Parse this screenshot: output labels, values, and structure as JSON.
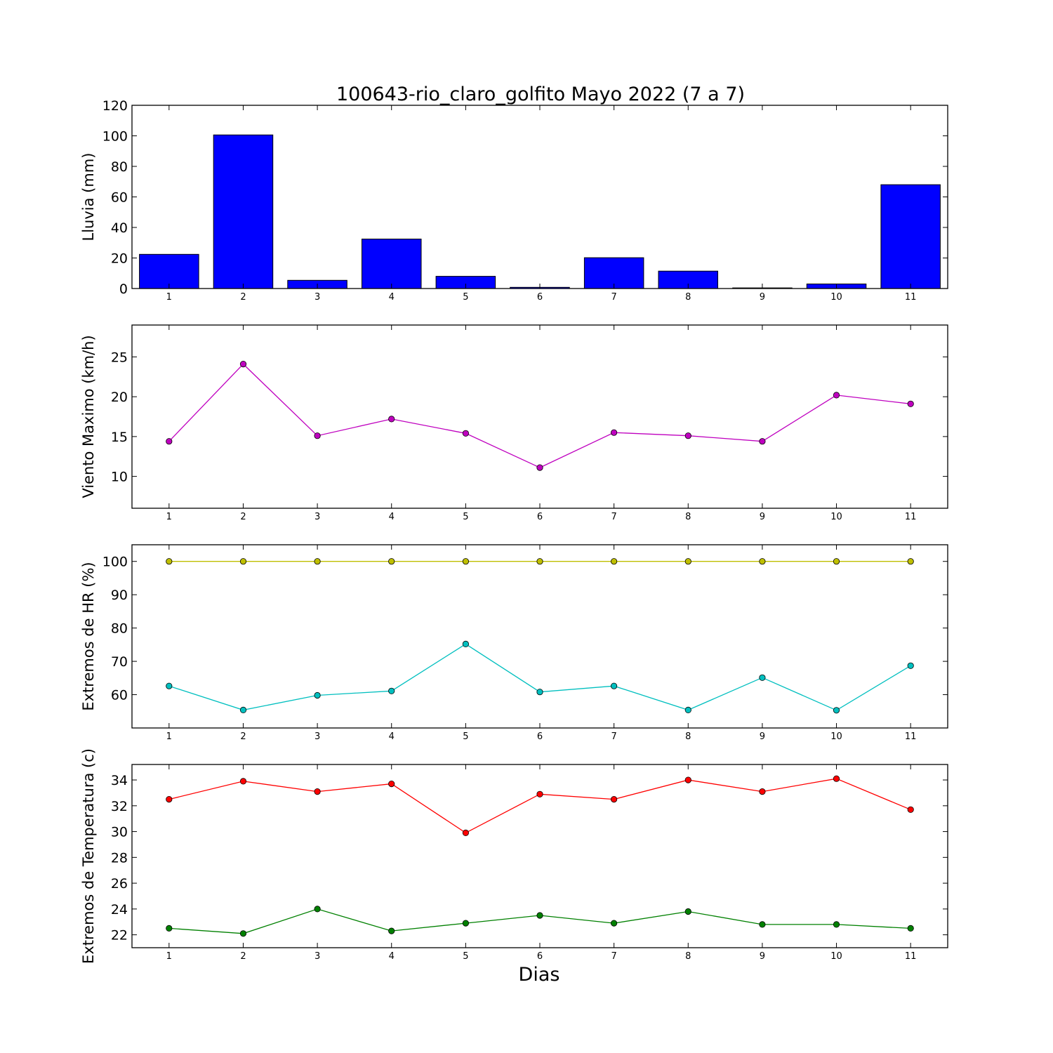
{
  "figure": {
    "title": "100643-rio_claro_golfito Mayo 2022  (7 a 7)",
    "xlabel": "Dias"
  },
  "chart_data": [
    {
      "type": "bar",
      "ylabel": "Lluvia (mm)",
      "ylim": [
        0,
        120
      ],
      "yticks": [
        0,
        20,
        40,
        60,
        80,
        100,
        120
      ],
      "categories": [
        "1",
        "2",
        "3",
        "4",
        "5",
        "6",
        "7",
        "8",
        "9",
        "10",
        "11"
      ],
      "series": [
        {
          "values": [
            22.4,
            100.6,
            5.4,
            32.4,
            8.0,
            0.8,
            20.2,
            11.4,
            0.4,
            3.0,
            68.0
          ],
          "color": "#0000ff"
        }
      ],
      "grid": false
    },
    {
      "type": "line",
      "ylabel": "Viento Maximo (km/h)",
      "ylim": [
        6,
        29
      ],
      "yticks": [
        10,
        15,
        20,
        25
      ],
      "categories": [
        "1",
        "2",
        "3",
        "4",
        "5",
        "6",
        "7",
        "8",
        "9",
        "10",
        "11"
      ],
      "series": [
        {
          "values": [
            14.4,
            24.1,
            15.1,
            17.2,
            15.4,
            11.1,
            15.5,
            15.1,
            14.4,
            20.2,
            19.1
          ],
          "color": "#bf00bf"
        }
      ],
      "grid": false
    },
    {
      "type": "line",
      "ylabel": "Extremos de HR (%)",
      "ylim": [
        50,
        105
      ],
      "yticks": [
        60,
        70,
        80,
        90,
        100
      ],
      "categories": [
        "1",
        "2",
        "3",
        "4",
        "5",
        "6",
        "7",
        "8",
        "9",
        "10",
        "11"
      ],
      "series": [
        {
          "values": [
            100,
            100,
            100,
            100,
            100,
            100,
            100,
            100,
            100,
            100,
            100
          ],
          "color": "#bfbf00"
        },
        {
          "values": [
            62.6,
            55.4,
            59.8,
            61.1,
            75.2,
            60.8,
            62.6,
            55.4,
            65.1,
            55.3,
            68.7
          ],
          "color": "#00bfbf"
        }
      ],
      "grid": false
    },
    {
      "type": "line",
      "ylabel": "Extremos de Temperatura (c)",
      "ylim": [
        21,
        35.2
      ],
      "yticks": [
        22,
        24,
        26,
        28,
        30,
        32,
        34
      ],
      "categories": [
        "1",
        "2",
        "3",
        "4",
        "5",
        "6",
        "7",
        "8",
        "9",
        "10",
        "11"
      ],
      "series": [
        {
          "values": [
            32.5,
            33.9,
            33.1,
            33.7,
            29.9,
            32.9,
            32.5,
            34.0,
            33.1,
            34.1,
            31.7
          ],
          "color": "#ff0000"
        },
        {
          "values": [
            22.5,
            22.1,
            24.0,
            22.3,
            22.9,
            23.5,
            22.9,
            23.8,
            22.8,
            22.8,
            22.5
          ],
          "color": "#008000"
        }
      ],
      "grid": false
    }
  ]
}
